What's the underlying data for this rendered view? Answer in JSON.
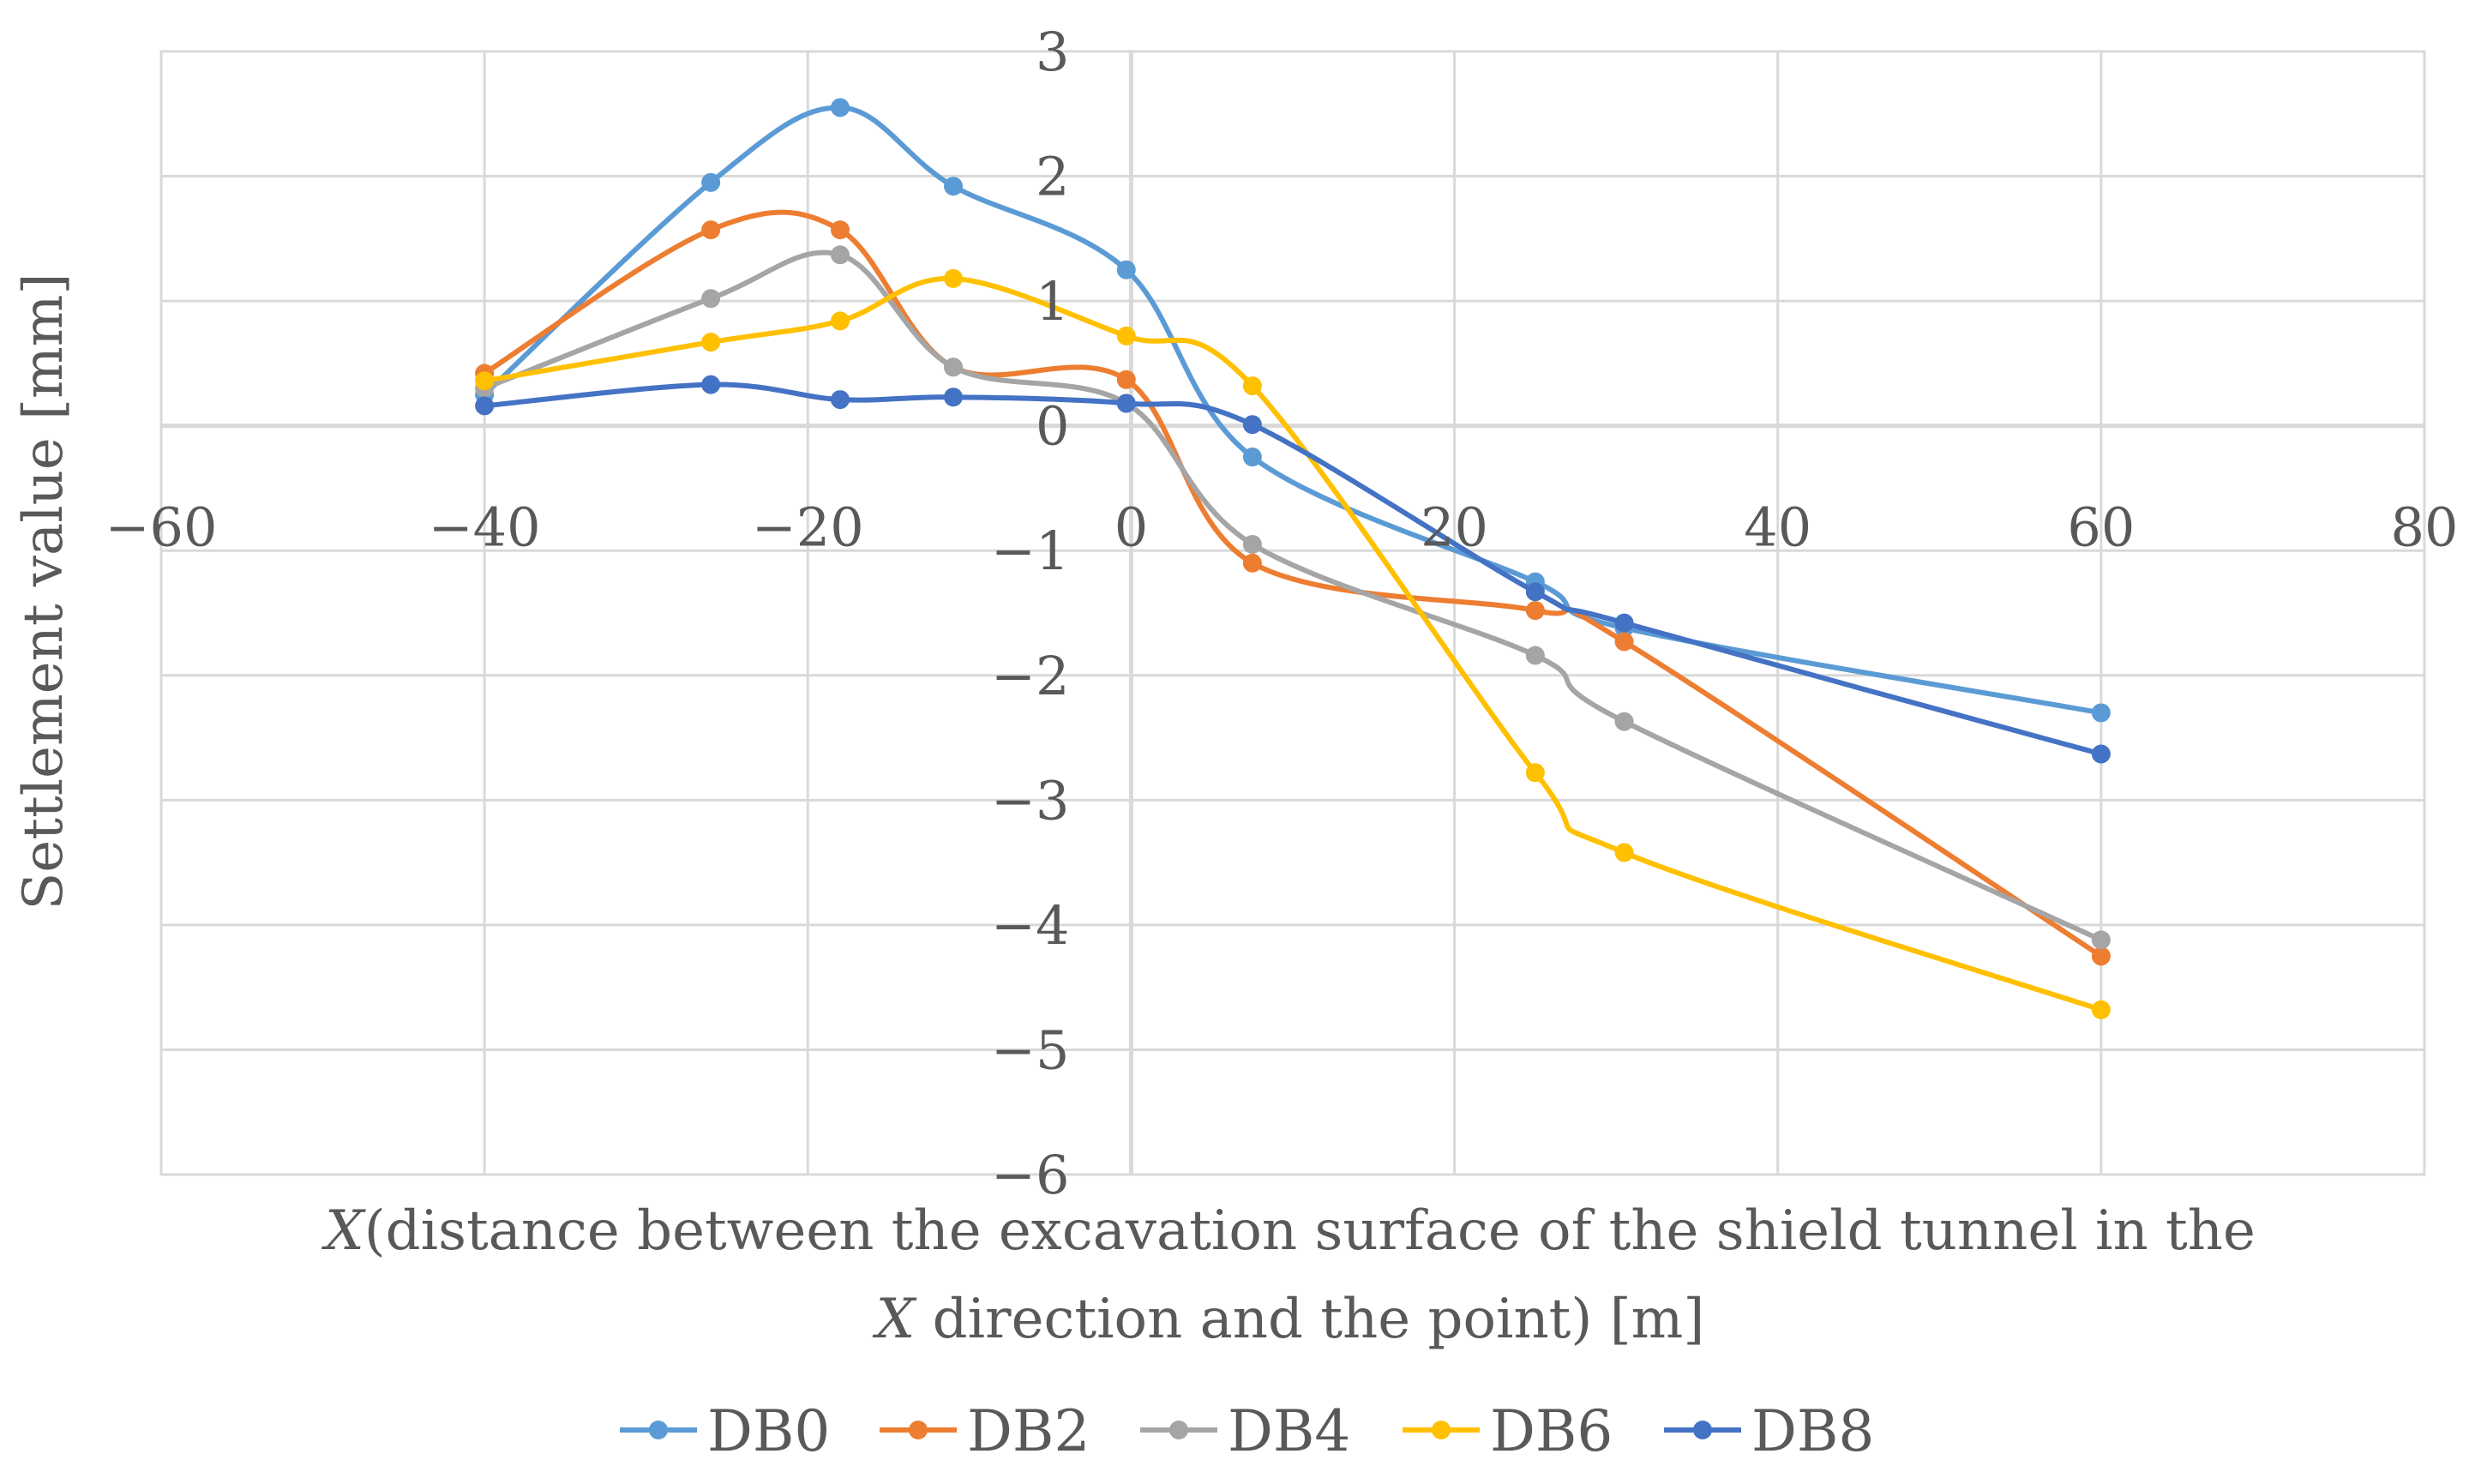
{
  "chart_data": {
    "type": "line",
    "title": "",
    "xlabel_line1_italic": "X",
    "xlabel_line1": "(distance between the excavation surface of the shield tunnel in the",
    "xlabel_line2_italic": "X",
    "xlabel_line2": " direction and the point) [m]",
    "ylabel": "Settlement value [mm]",
    "xlim": [
      -60,
      80
    ],
    "ylim": [
      -6,
      3
    ],
    "xticks": [
      -60,
      -40,
      -20,
      0,
      20,
      40,
      60,
      80
    ],
    "yticks": [
      3,
      2,
      1,
      0,
      -1,
      -2,
      -3,
      -4,
      -5,
      -6
    ],
    "xtick_labels": [
      "−60",
      "−40",
      "−20",
      "0",
      "20",
      "40",
      "60",
      "80"
    ],
    "ytick_labels": [
      "3",
      "2",
      "1",
      "0",
      "−1",
      "−2",
      "−3",
      "−4",
      "−5",
      "−6"
    ],
    "grid": true,
    "smooth": true,
    "legend_position": "bottom",
    "series": [
      {
        "name": "DB0",
        "color": "#5b9bd5",
        "points": [
          [
            -40,
            0.25
          ],
          [
            -26,
            1.95
          ],
          [
            -18,
            2.55
          ],
          [
            -11,
            1.92
          ],
          [
            -0.3,
            1.25
          ],
          [
            7.5,
            -0.25
          ],
          [
            25,
            -1.25
          ],
          [
            30.5,
            -1.62
          ],
          [
            60,
            -2.3
          ]
        ]
      },
      {
        "name": "DB2",
        "color": "#ed7d31",
        "points": [
          [
            -40,
            0.42
          ],
          [
            -26,
            1.57
          ],
          [
            -18,
            1.57
          ],
          [
            -11,
            0.47
          ],
          [
            -0.3,
            0.37
          ],
          [
            7.5,
            -1.1
          ],
          [
            25,
            -1.48
          ],
          [
            30.5,
            -1.73
          ],
          [
            60,
            -4.25
          ]
        ]
      },
      {
        "name": "DB4",
        "color": "#a5a5a5",
        "points": [
          [
            -40,
            0.3
          ],
          [
            -26,
            1.02
          ],
          [
            -18,
            1.37
          ],
          [
            -11,
            0.47
          ],
          [
            -0.3,
            0.18
          ],
          [
            7.5,
            -0.95
          ],
          [
            25,
            -1.84
          ],
          [
            30.5,
            -2.37
          ],
          [
            60,
            -4.12
          ]
        ]
      },
      {
        "name": "DB6",
        "color": "#ffc000",
        "points": [
          [
            -40,
            0.36
          ],
          [
            -26,
            0.67
          ],
          [
            -18,
            0.84
          ],
          [
            -11,
            1.18
          ],
          [
            -0.3,
            0.72
          ],
          [
            7.5,
            0.32
          ],
          [
            25,
            -2.78
          ],
          [
            30.5,
            -3.42
          ],
          [
            60,
            -4.68
          ]
        ]
      },
      {
        "name": "DB8",
        "color": "#4472c4",
        "points": [
          [
            -40,
            0.16
          ],
          [
            -26,
            0.33
          ],
          [
            -18,
            0.21
          ],
          [
            -11,
            0.23
          ],
          [
            -0.3,
            0.18
          ],
          [
            7.5,
            0.01
          ],
          [
            25,
            -1.33
          ],
          [
            30.5,
            -1.58
          ],
          [
            60,
            -2.63
          ]
        ]
      }
    ]
  }
}
